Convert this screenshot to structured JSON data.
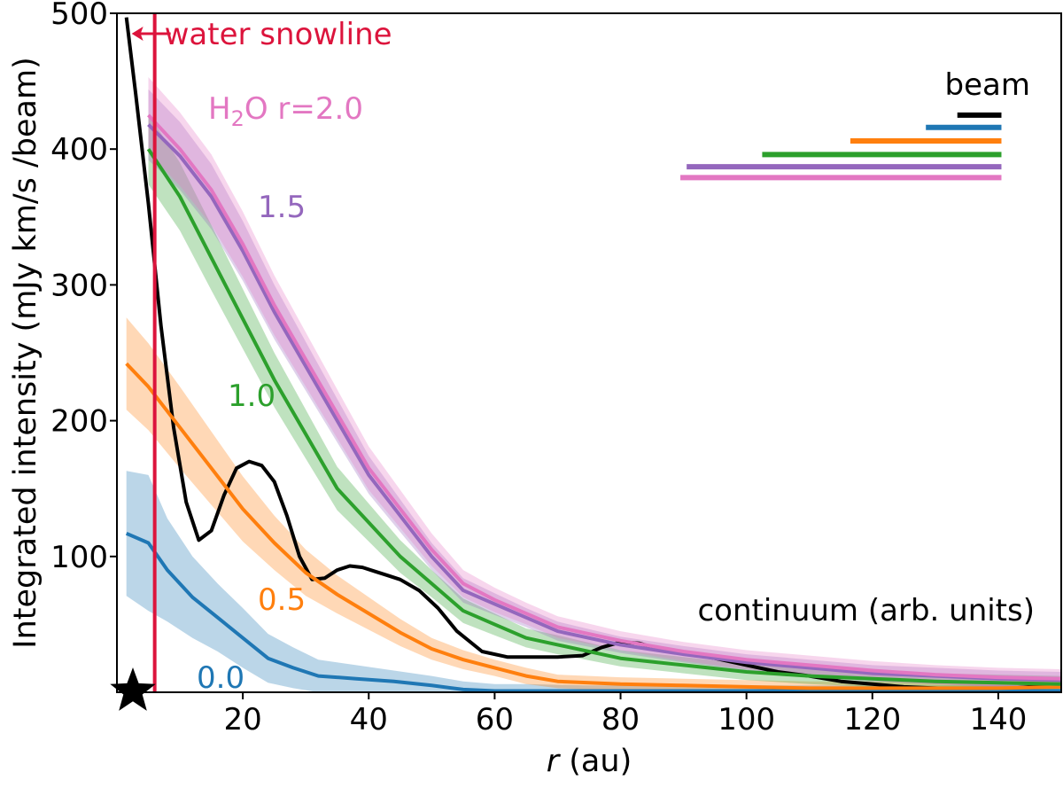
{
  "chart_data": {
    "type": "line",
    "xlabel_var": "r",
    "xlabel_unit": " (au)",
    "ylabel": "Integrated intensity (mJy km/s /beam)",
    "xlim": [
      0,
      150
    ],
    "ylim": [
      0,
      500
    ],
    "xticks": [
      20,
      40,
      60,
      80,
      100,
      120,
      140
    ],
    "yticks": [
      100,
      200,
      300,
      400,
      500
    ],
    "snowline": {
      "x": 6.0,
      "label": "water snowline",
      "color": "#dc143c"
    },
    "continuum": {
      "label": "continuum (arb. units)",
      "color": "#000000",
      "x": [
        1.5,
        3,
        5,
        7,
        9,
        11,
        13,
        15,
        17,
        19,
        21,
        23,
        25,
        27,
        29,
        31,
        33,
        35,
        37,
        39,
        41,
        43,
        45,
        48,
        51,
        54,
        58,
        62,
        66,
        70,
        74,
        77,
        80,
        83,
        86,
        90,
        95,
        100,
        105,
        110,
        115,
        120,
        125,
        130,
        135,
        140,
        145,
        150
      ],
      "y": [
        497,
        440,
        360,
        270,
        195,
        140,
        112,
        119,
        145,
        165,
        170,
        167,
        155,
        130,
        100,
        83,
        84,
        90,
        93,
        92,
        89,
        86,
        83,
        75,
        62,
        45,
        30,
        26,
        26,
        26,
        27,
        33,
        37,
        36,
        32,
        29,
        25,
        20,
        15,
        12,
        8,
        6,
        4,
        3,
        2,
        2,
        4,
        6
      ]
    },
    "series": [
      {
        "name": "0.0",
        "label": "0.0",
        "color": "#1f77b4",
        "x": [
          1.5,
          5,
          8,
          12,
          16,
          20,
          24,
          28,
          32,
          38,
          44,
          50,
          55,
          60,
          65,
          75,
          85,
          95,
          105,
          115,
          125,
          135,
          145,
          150
        ],
        "y": [
          117,
          110,
          90,
          70,
          55,
          40,
          25,
          18,
          12,
          10,
          8,
          5,
          2,
          1,
          1,
          1,
          1,
          1,
          1,
          1,
          1,
          1,
          1,
          1
        ],
        "band": [
          46,
          50,
          38,
          30,
          25,
          22,
          18,
          15,
          12,
          10,
          8,
          7,
          6,
          5,
          5,
          4,
          4,
          4,
          4,
          4,
          4,
          4,
          4,
          4
        ]
      },
      {
        "name": "0.5",
        "label": "0.5",
        "color": "#ff7f0e",
        "x": [
          1.5,
          5,
          10,
          15,
          20,
          25,
          30,
          35,
          40,
          45,
          50,
          55,
          60,
          65,
          70,
          80,
          90,
          100,
          110,
          120,
          130,
          140,
          150
        ],
        "y": [
          242,
          225,
          195,
          165,
          135,
          110,
          88,
          72,
          58,
          44,
          32,
          24,
          18,
          12,
          8,
          6,
          5,
          4,
          3,
          3,
          3,
          3,
          4
        ],
        "band": [
          34,
          32,
          30,
          27,
          24,
          20,
          17,
          14,
          12,
          10,
          8,
          7,
          6,
          6,
          5,
          5,
          5,
          5,
          5,
          5,
          5,
          5,
          5
        ]
      },
      {
        "name": "1.0",
        "label": "1.0",
        "color": "#2ca02c",
        "x": [
          5,
          10,
          15,
          20,
          25,
          30,
          35,
          40,
          45,
          50,
          55,
          60,
          65,
          70,
          80,
          90,
          100,
          110,
          120,
          130,
          140,
          150
        ],
        "y": [
          400,
          365,
          320,
          275,
          230,
          190,
          150,
          125,
          100,
          80,
          60,
          50,
          40,
          35,
          25,
          20,
          15,
          12,
          10,
          8,
          7,
          6
        ],
        "band": [
          26,
          25,
          24,
          22,
          20,
          18,
          16,
          14,
          12,
          10,
          9,
          8,
          7,
          7,
          6,
          6,
          6,
          6,
          6,
          6,
          6,
          6
        ]
      },
      {
        "name": "1.5",
        "label": "1.5",
        "color": "#9467bd",
        "x": [
          5,
          10,
          15,
          20,
          25,
          30,
          35,
          40,
          45,
          50,
          55,
          60,
          65,
          70,
          80,
          90,
          100,
          110,
          120,
          130,
          140,
          150
        ],
        "y": [
          418,
          395,
          365,
          325,
          280,
          240,
          200,
          160,
          130,
          100,
          75,
          65,
          55,
          45,
          35,
          28,
          22,
          18,
          14,
          12,
          10,
          9
        ],
        "band": [
          26,
          25,
          24,
          22,
          20,
          18,
          16,
          14,
          12,
          10,
          9,
          8,
          7,
          7,
          6,
          6,
          6,
          6,
          6,
          6,
          6,
          6
        ]
      },
      {
        "name": "H2O r=2.0",
        "label": "r=2.0",
        "color": "#e377c2",
        "x": [
          5,
          10,
          15,
          20,
          25,
          30,
          35,
          40,
          45,
          50,
          55,
          60,
          65,
          70,
          80,
          90,
          100,
          110,
          120,
          130,
          140,
          150
        ],
        "y": [
          425,
          400,
          370,
          330,
          285,
          245,
          205,
          165,
          135,
          105,
          80,
          68,
          58,
          48,
          38,
          30,
          24,
          20,
          16,
          13,
          11,
          10
        ],
        "band": [
          28,
          27,
          26,
          24,
          22,
          20,
          18,
          16,
          14,
          12,
          10,
          9,
          8,
          8,
          7,
          7,
          7,
          7,
          7,
          7,
          7,
          7
        ]
      }
    ],
    "beam": {
      "label": "beam",
      "right_x": 140.5,
      "bars": [
        {
          "color": "#000000",
          "width": 7,
          "y": 425
        },
        {
          "color": "#1f77b4",
          "width": 12,
          "y": 416
        },
        {
          "color": "#ff7f0e",
          "width": 24,
          "y": 406
        },
        {
          "color": "#2ca02c",
          "width": 38,
          "y": 396
        },
        {
          "color": "#9467bd",
          "width": 50,
          "y": 387
        },
        {
          "color": "#e377c2",
          "width": 51,
          "y": 379
        }
      ]
    }
  }
}
